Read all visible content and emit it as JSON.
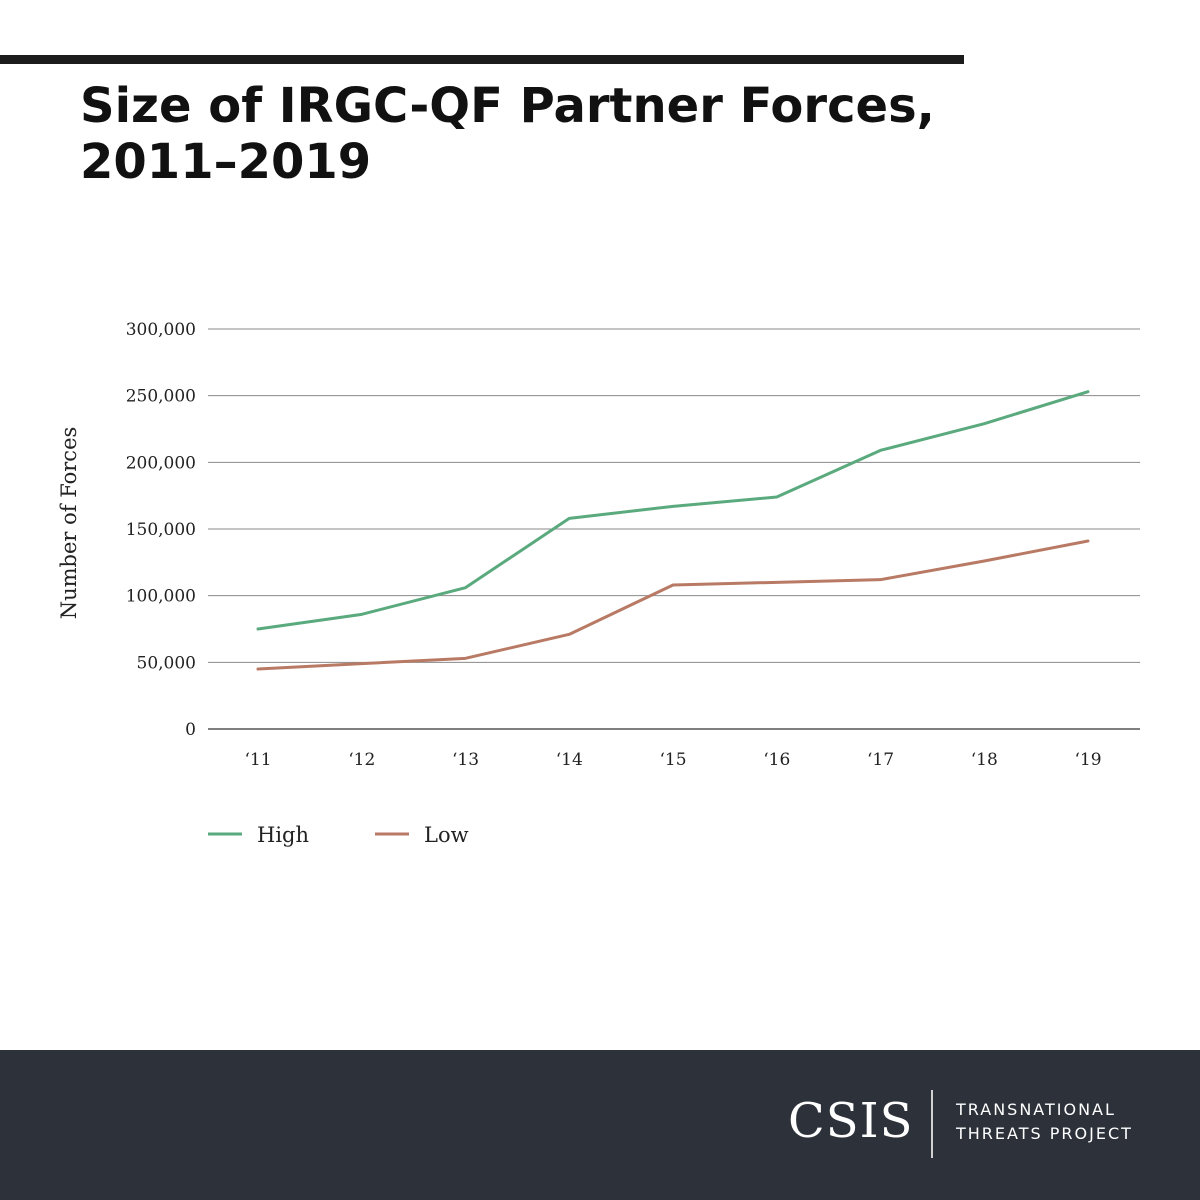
{
  "title": {
    "line1": "Size of IRGC-QF Partner Forces,",
    "line2": "2011–2019"
  },
  "chart_data": {
    "type": "line",
    "title": "Size of IRGC-QF Partner Forces, 2011–2019",
    "xlabel": "",
    "ylabel": "Number of Forces",
    "categories": [
      "‘11",
      "‘12",
      "‘13",
      "‘14",
      "‘15",
      "‘16",
      "‘17",
      "‘18",
      "‘19"
    ],
    "ylim": [
      0,
      300000
    ],
    "yticks": [
      0,
      50000,
      100000,
      150000,
      200000,
      250000,
      300000
    ],
    "ytick_labels": [
      "0",
      "50,000",
      "100,000",
      "150,000",
      "200,000",
      "250,000",
      "300,000"
    ],
    "grid": true,
    "legend_position": "bottom-left",
    "series": [
      {
        "name": "High",
        "color": "#5aaa7e",
        "values": [
          75000,
          86000,
          106000,
          158000,
          167000,
          174000,
          209000,
          229000,
          253000
        ]
      },
      {
        "name": "Low",
        "color": "#b87a64",
        "values": [
          45000,
          49000,
          53000,
          71000,
          108000,
          110000,
          112000,
          126000,
          141000
        ]
      }
    ]
  },
  "footer": {
    "brand": "CSIS",
    "project_line1": "TRANSNATIONAL",
    "project_line2": "THREATS PROJECT"
  }
}
